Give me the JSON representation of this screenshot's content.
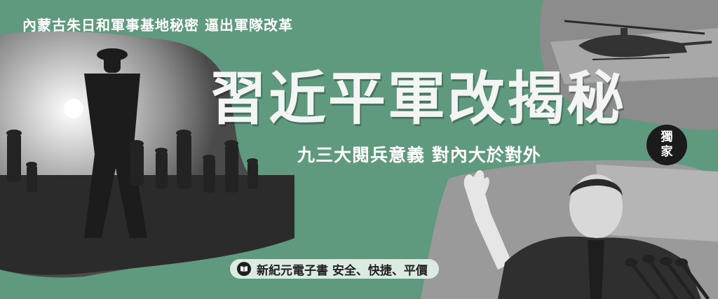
{
  "banner": {
    "top_subtitle": "內蒙古朱日和軍事基地秘密 逼出軍隊改革",
    "main_title": "習近平軍改揭秘",
    "sub_title": "九三大閱兵意義 對內大於對外",
    "badge": {
      "line1": "獨",
      "line2": "家"
    },
    "pill": {
      "icon": "book-icon",
      "text": "新紀元電子書  安全、快捷、平價"
    },
    "colors": {
      "background": "#5f9a7e",
      "title": "#f2f5f3",
      "badge_bg": "#1b1b1b",
      "pill_bg": "#dcebe2"
    }
  }
}
